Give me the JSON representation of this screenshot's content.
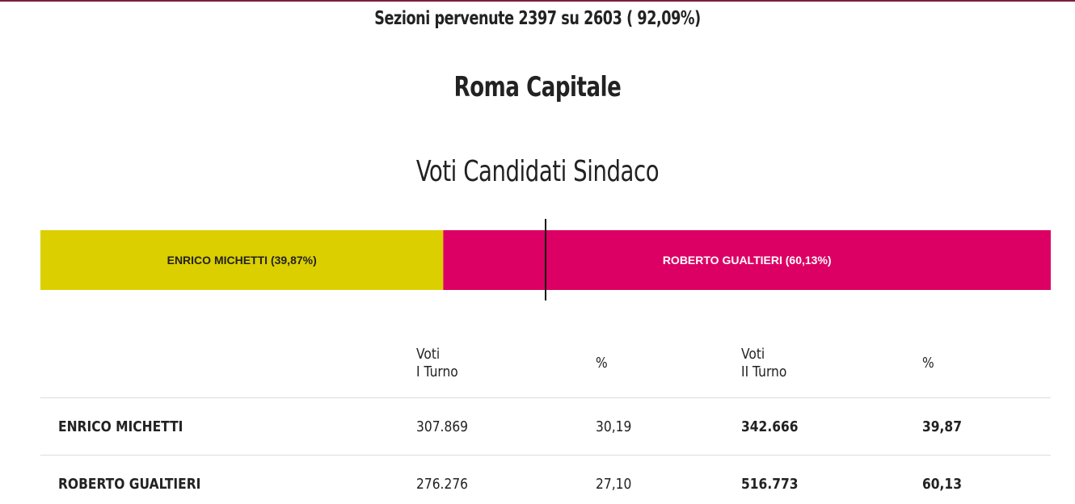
{
  "header": {
    "sections_text": "Sezioni pervenute 2397 su 2603 ( 92,09%)",
    "city": "Roma Capitale",
    "chart_title": "Voti Candidati Sindaco"
  },
  "colors": {
    "top_rule": "#7a1f3d",
    "michetti": "#dccf00",
    "gualtieri": "#dc0064",
    "midline": "#111111"
  },
  "chart_data": {
    "type": "bar",
    "orientation": "horizontal-stacked-100",
    "title": "Voti Candidati Sindaco",
    "threshold_percent": 50,
    "series": [
      {
        "name": "ENRICO MICHETTI",
        "label": "ENRICO MICHETTI (39,87%)",
        "value": 39.87,
        "color": "#dccf00",
        "label_color": "#222222"
      },
      {
        "name": "ROBERTO GUALTIERI",
        "label": "ROBERTO GUALTIERI (60,13%)",
        "value": 60.13,
        "color": "#dc0064",
        "label_color": "#ffffff"
      }
    ]
  },
  "table": {
    "headers": {
      "name": "",
      "votes_round1_line1": "Voti",
      "votes_round1_line2": "I Turno",
      "pct_round1": "%",
      "votes_round2_line1": "Voti",
      "votes_round2_line2": "II Turno",
      "pct_round2": "%"
    },
    "rows": [
      {
        "name": "ENRICO MICHETTI",
        "votes_round1": "307.869",
        "pct_round1": "30,19",
        "votes_round2": "342.666",
        "pct_round2": "39,87"
      },
      {
        "name": "ROBERTO GUALTIERI",
        "votes_round1": "276.276",
        "pct_round1": "27,10",
        "votes_round2": "516.773",
        "pct_round2": "60,13"
      }
    ]
  }
}
